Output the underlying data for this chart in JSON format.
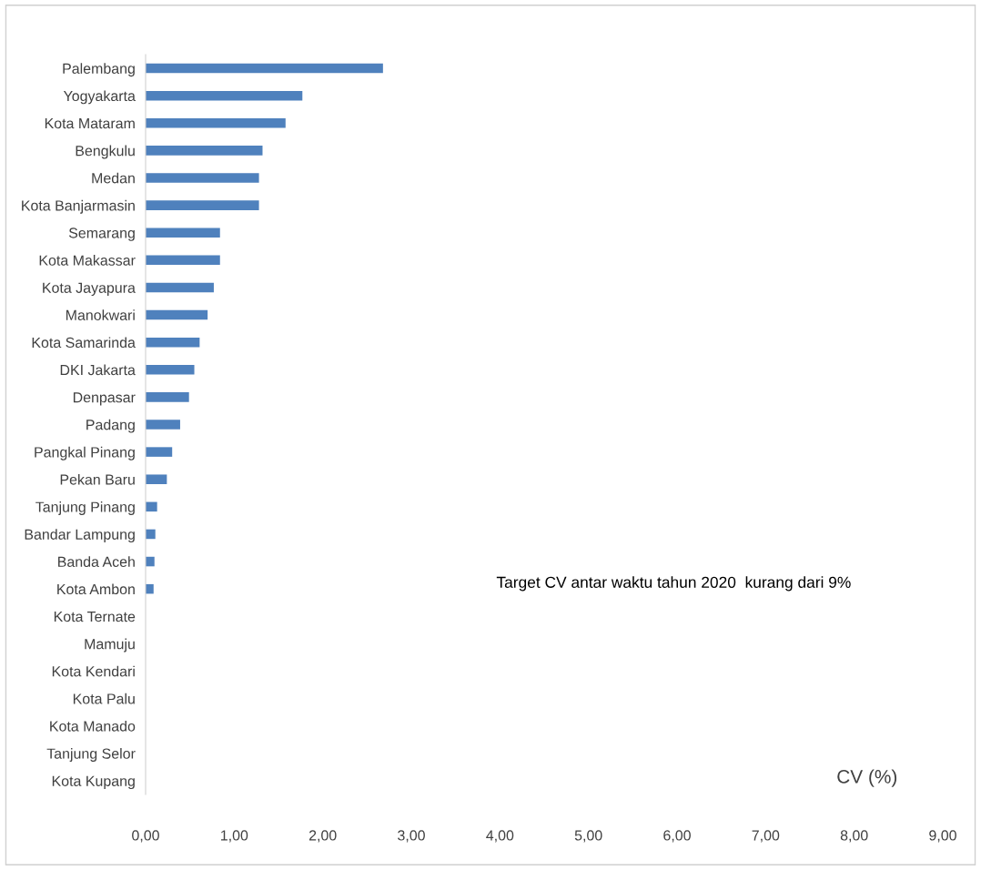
{
  "chart_data": {
    "type": "bar",
    "orientation": "horizontal",
    "xlabel": "CV (%)",
    "categories": [
      "Palembang",
      "Yogyakarta",
      "Kota Mataram",
      "Bengkulu",
      "Medan",
      "Kota Banjarmasin",
      "Semarang",
      "Kota Makassar",
      "Kota Jayapura",
      "Manokwari",
      "Kota Samarinda",
      "DKI Jakarta",
      "Denpasar",
      "Padang",
      "Pangkal Pinang",
      "Pekan Baru",
      "Tanjung Pinang",
      "Bandar Lampung",
      "Banda Aceh",
      "Kota Ambon",
      "Kota Ternate",
      "Mamuju",
      "Kota Kendari",
      "Kota Palu",
      "Kota Manado",
      "Tanjung Selor",
      "Kota Kupang"
    ],
    "values": [
      2.68,
      1.77,
      1.58,
      1.32,
      1.28,
      1.28,
      0.84,
      0.84,
      0.77,
      0.7,
      0.61,
      0.55,
      0.49,
      0.39,
      0.3,
      0.24,
      0.13,
      0.11,
      0.1,
      0.09,
      0,
      0,
      0,
      0,
      0,
      0,
      0
    ],
    "color": "#4f81bd",
    "xlim": [
      0,
      9
    ],
    "xticks": [
      {
        "value": 0,
        "label": "0,00"
      },
      {
        "value": 1,
        "label": "1,00"
      },
      {
        "value": 2,
        "label": "2,00"
      },
      {
        "value": 3,
        "label": "3,00"
      },
      {
        "value": 4,
        "label": "4,00"
      },
      {
        "value": 5,
        "label": "5,00"
      },
      {
        "value": 6,
        "label": "6,00"
      },
      {
        "value": 7,
        "label": "7,00"
      },
      {
        "value": 8,
        "label": "8,00"
      },
      {
        "value": 9,
        "label": "9,00"
      }
    ],
    "annotations": [
      "Target CV antar waktu tahun 2020  kurang dari 9%"
    ],
    "grid": false,
    "legend": false
  }
}
